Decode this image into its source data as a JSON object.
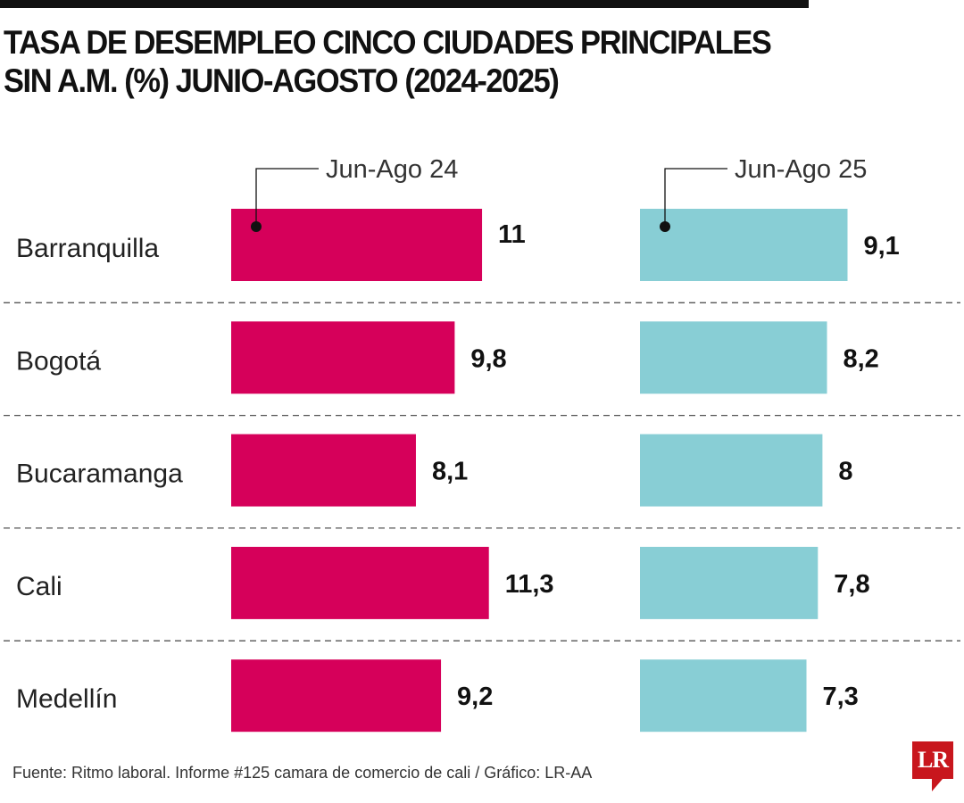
{
  "chart_data": {
    "type": "bar",
    "orientation": "horizontal",
    "title": "TASA DE DESEMPLEO CINCO CIUDADES PRINCIPALES SIN A.M. (%) JUNIO-AGOSTO (2024-2025)",
    "categories": [
      "Barranquilla",
      "Bogotá",
      "Bucaramanga",
      "Cali",
      "Medellín"
    ],
    "series": [
      {
        "name": "Jun-Ago 24",
        "values": [
          11,
          9.8,
          8.1,
          11.3,
          9.2
        ],
        "labels": [
          "11",
          "9,8",
          "8,1",
          "11,3",
          "9,2"
        ],
        "color": "#d6005a"
      },
      {
        "name": "Jun-Ago 25",
        "values": [
          9.1,
          8.2,
          8,
          7.8,
          7.3
        ],
        "labels": [
          "9,1",
          "8,2",
          "8",
          "7,8",
          "7,3"
        ],
        "color": "#88ced5"
      }
    ],
    "xlim": [
      0,
      12
    ],
    "grid": false,
    "legend": "top, callout per series"
  },
  "footer": {
    "source": "Fuente: Ritmo laboral. Informe #125 camara de comercio de cali / Gráfico: LR-AA",
    "logo_text": "LR",
    "logo_color": "#c8161d"
  }
}
